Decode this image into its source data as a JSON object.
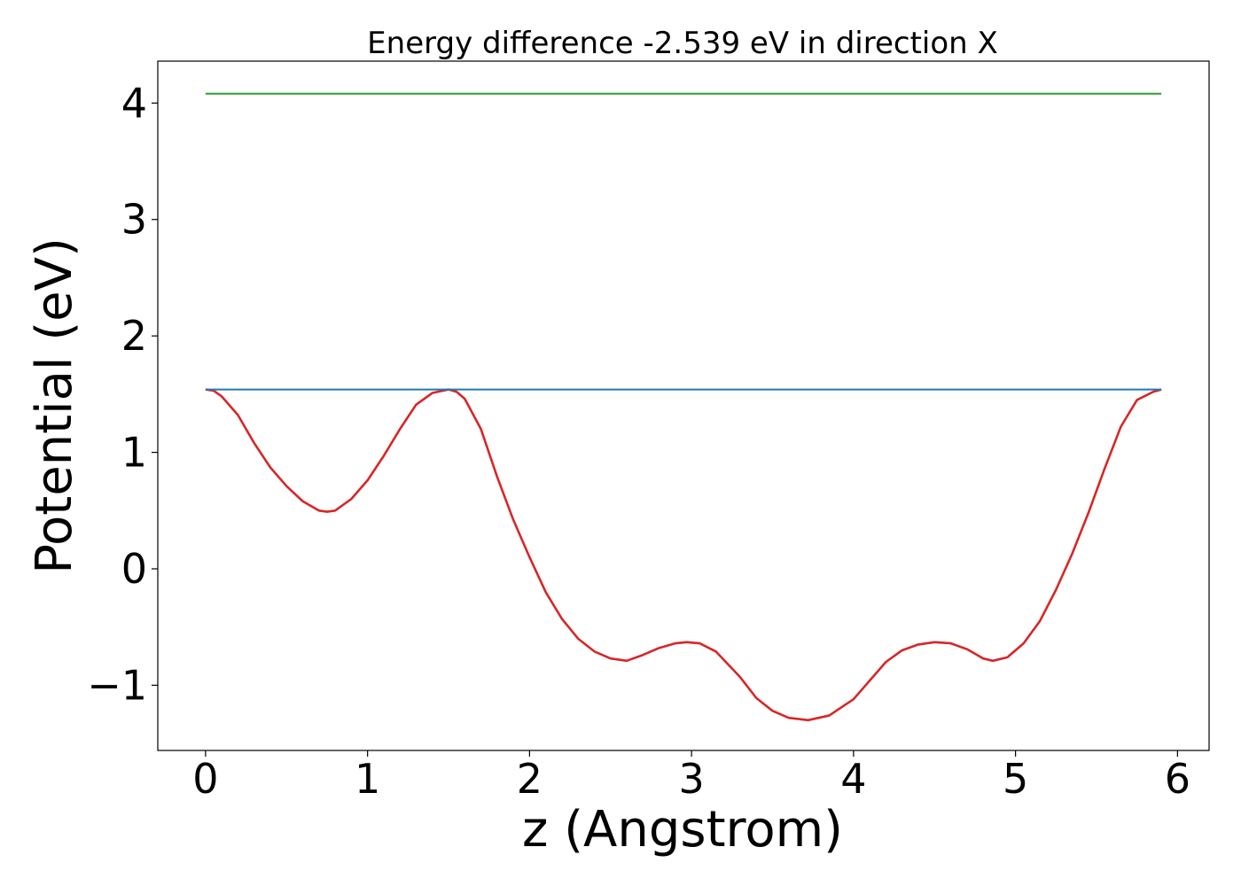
{
  "chart_data": {
    "type": "line",
    "title": "Energy difference -2.539 eV in direction X",
    "xlabel": "z (Angstrom)",
    "ylabel": "Potential (eV)",
    "xlim": [
      -0.295,
      6.195
    ],
    "ylim": [
      -1.56,
      4.36
    ],
    "xticks": [
      0,
      1,
      2,
      3,
      4,
      5,
      6
    ],
    "xtick_labels": [
      "0",
      "1",
      "2",
      "3",
      "4",
      "5",
      "6"
    ],
    "yticks": [
      -1,
      0,
      1,
      2,
      3,
      4
    ],
    "ytick_labels": [
      "−1",
      "0",
      "1",
      "2",
      "3",
      "4"
    ],
    "grid": false,
    "legend": "none",
    "series": [
      {
        "color": "#d62728",
        "x": [
          0.0,
          0.05,
          0.1,
          0.2,
          0.3,
          0.4,
          0.5,
          0.6,
          0.7,
          0.75,
          0.8,
          0.9,
          1.0,
          1.1,
          1.2,
          1.3,
          1.4,
          1.5,
          1.55,
          1.6,
          1.7,
          1.8,
          1.9,
          2.0,
          2.1,
          2.2,
          2.3,
          2.4,
          2.5,
          2.6,
          2.7,
          2.8,
          2.9,
          2.97,
          3.05,
          3.15,
          3.3,
          3.4,
          3.5,
          3.6,
          3.72,
          3.85,
          4.0,
          4.1,
          4.2,
          4.3,
          4.4,
          4.5,
          4.6,
          4.7,
          4.8,
          4.86,
          4.95,
          5.05,
          5.15,
          5.25,
          5.35,
          5.45,
          5.55,
          5.65,
          5.75,
          5.85,
          5.9
        ],
        "y": [
          1.54,
          1.53,
          1.48,
          1.32,
          1.08,
          0.87,
          0.71,
          0.58,
          0.5,
          0.49,
          0.5,
          0.6,
          0.76,
          0.97,
          1.2,
          1.41,
          1.51,
          1.54,
          1.52,
          1.46,
          1.2,
          0.79,
          0.42,
          0.1,
          -0.2,
          -0.43,
          -0.6,
          -0.71,
          -0.77,
          -0.79,
          -0.74,
          -0.68,
          -0.64,
          -0.63,
          -0.64,
          -0.71,
          -0.93,
          -1.11,
          -1.22,
          -1.28,
          -1.3,
          -1.26,
          -1.12,
          -0.96,
          -0.8,
          -0.7,
          -0.65,
          -0.63,
          -0.64,
          -0.69,
          -0.77,
          -0.79,
          -0.76,
          -0.64,
          -0.45,
          -0.18,
          0.13,
          0.48,
          0.86,
          1.22,
          1.45,
          1.52,
          1.54
        ]
      },
      {
        "color": "#1f77b4",
        "x": [
          0.0,
          5.9
        ],
        "y": [
          1.54,
          1.54
        ]
      },
      {
        "color": "#2ca02c",
        "x": [
          0.0,
          5.9
        ],
        "y": [
          4.08,
          4.08
        ]
      }
    ]
  }
}
